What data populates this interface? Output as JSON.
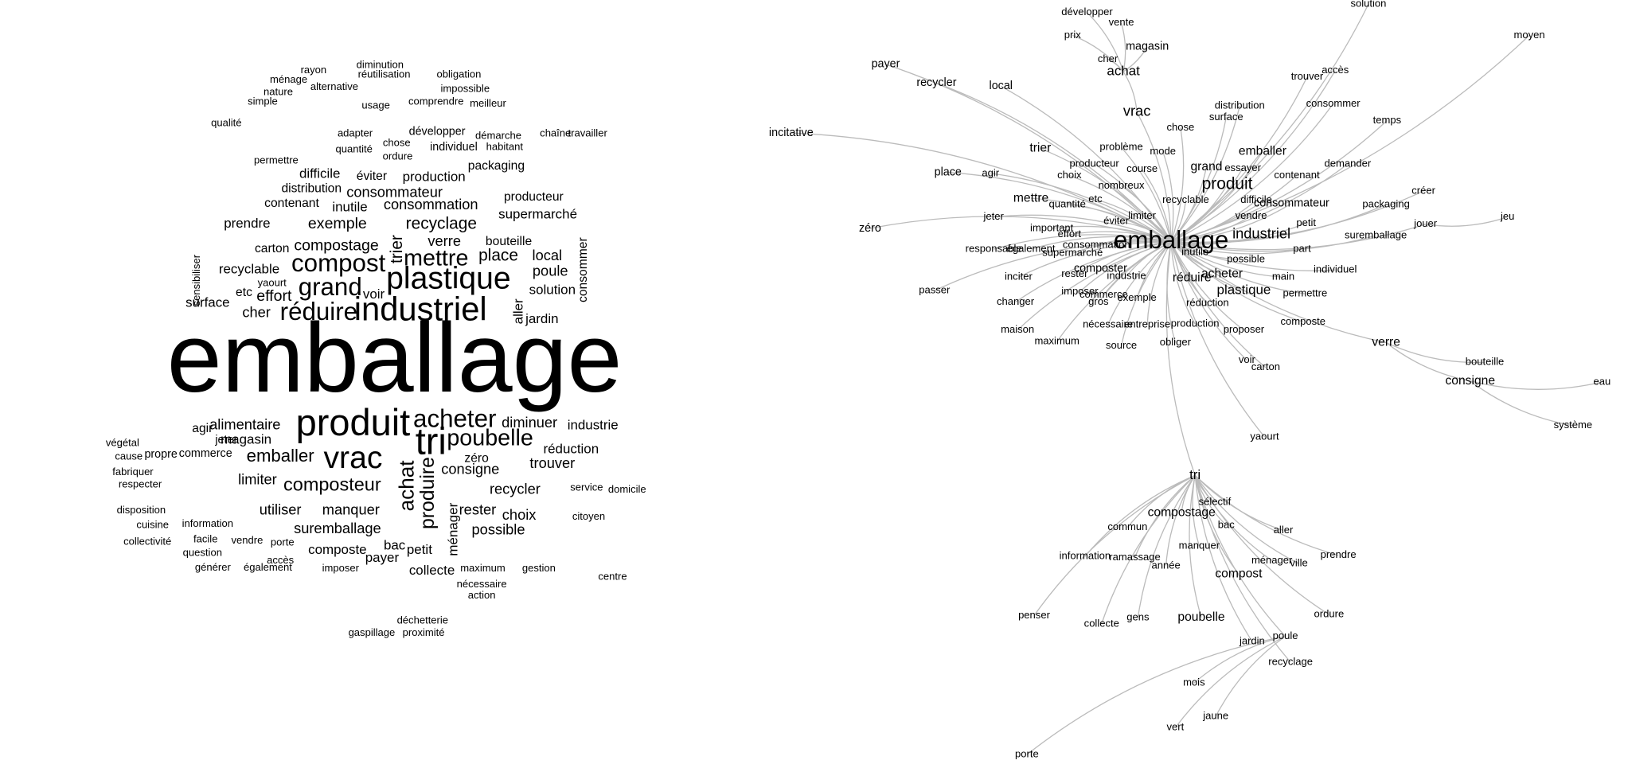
{
  "word_cloud": {
    "words": [
      "emballage",
      "produit",
      "industriel",
      "plastique",
      "vrac",
      "tri",
      "acheter",
      "compost",
      "grand",
      "réduire",
      "poubelle",
      "mettre",
      "composteur",
      "emballer",
      "achat",
      "produire",
      "recyclage",
      "compostage",
      "exemple",
      "consommation",
      "consommateur",
      "supermarché",
      "diminuer",
      "industrie",
      "alimentaire",
      "consigne",
      "recycler",
      "manquer",
      "utiliser",
      "suremballage",
      "place",
      "verre",
      "local",
      "poule",
      "solution",
      "jardin",
      "trouver",
      "réduction",
      "rester",
      "choix",
      "possible",
      "collecte",
      "composte",
      "payer",
      "bac",
      "petit",
      "magasin",
      "limiter",
      "cher",
      "effort",
      "surface",
      "carton",
      "recyclable",
      "prendre",
      "distribution",
      "contenant",
      "difficile",
      "éviter",
      "production",
      "packaging",
      "producteur",
      "bouteille",
      "inutile",
      "jeter",
      "agir",
      "zéro",
      "voir",
      "etc",
      "yaourt",
      "commerce",
      "propre",
      "cause",
      "végétal",
      "ménage",
      "usage",
      "simple",
      "nature",
      "alternative",
      "quantité",
      "ordure",
      "chaîne",
      "travailler",
      "démarche",
      "habitant",
      "comprendre",
      "meilleur",
      "impossible",
      "obligation",
      "réutilisation",
      "diminution",
      "rayon",
      "individuel",
      "développer",
      "chose",
      "adapter",
      "permettre",
      "qualité",
      "respecter",
      "fabriquer",
      "information",
      "disposition",
      "cuisine",
      "collectivité",
      "facile",
      "vendre",
      "porte",
      "accès",
      "générer",
      "également",
      "question",
      "imposer",
      "maximum",
      "gestion",
      "nécessaire",
      "action",
      "service",
      "domicile",
      "citoyen",
      "centre",
      "déchetterie",
      "gaspillage",
      "proximité",
      "consommer",
      "sensibiliser",
      "aller",
      "trier",
      "ménager"
    ]
  },
  "network": {
    "nodes": [
      "emballage",
      "tri",
      "vrac",
      "verre",
      "produit",
      "industriel",
      "plastique",
      "achat",
      "acheter",
      "réduire",
      "composter",
      "payer",
      "recycler",
      "local",
      "incitative",
      "zéro",
      "place",
      "agir",
      "trier",
      "mettre",
      "jeter",
      "important",
      "responsable",
      "également",
      "inciter",
      "passer",
      "changer",
      "maison",
      "maximum",
      "imposer",
      "gros",
      "nécessaire",
      "entreprise",
      "source",
      "obliger",
      "production",
      "proposer",
      "voir",
      "carton",
      "yaourt",
      "composte",
      "permettre",
      "main",
      "individuel",
      "part",
      "suremballage",
      "petit",
      "packaging",
      "créer",
      "jouer",
      "jeu",
      "demander",
      "contenant",
      "consommateur",
      "emballer",
      "essayer",
      "grand",
      "surface",
      "distribution",
      "consommer",
      "temps",
      "trouver",
      "accès",
      "moyen",
      "solution",
      "chose",
      "problème",
      "mode",
      "producteur",
      "choix",
      "course",
      "nombreux",
      "etc",
      "quantité",
      "éviter",
      "limiter",
      "recyclable",
      "difficile",
      "vendre",
      "supermarché",
      "consommation",
      "effort",
      "rester",
      "industrie",
      "commerce",
      "exemple",
      "réduction",
      "possible",
      "inutile",
      "magasin",
      "cher",
      "prix",
      "développer",
      "vente",
      "bouteille",
      "consigne",
      "eau",
      "système",
      "sélectif",
      "compostage",
      "commun",
      "bac",
      "aller",
      "information",
      "ramassage",
      "manquer",
      "année",
      "ménager",
      "ville",
      "prendre",
      "compost",
      "penser",
      "collecte",
      "gens",
      "poubelle",
      "ordure",
      "poule",
      "jardin",
      "recyclage",
      "mois",
      "jaune",
      "vert",
      "porte"
    ]
  }
}
